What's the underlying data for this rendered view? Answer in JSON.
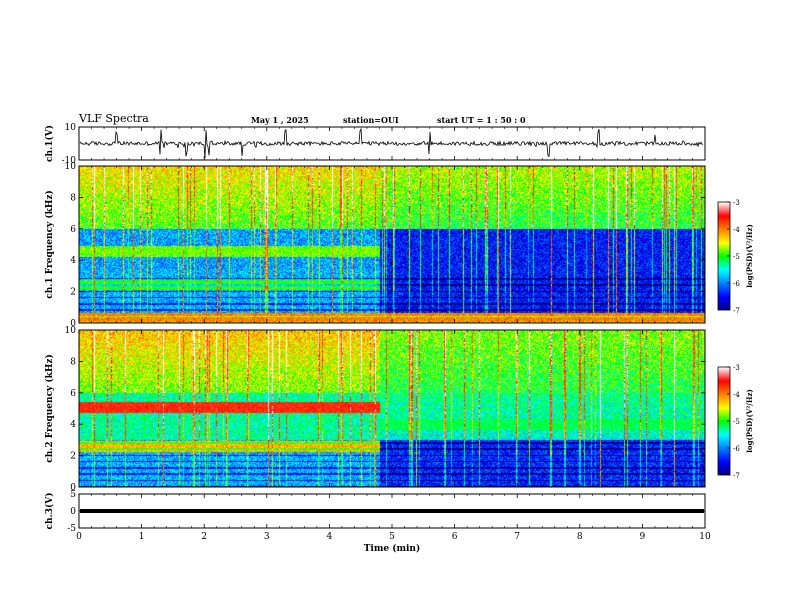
{
  "header": {
    "title": "VLF Spectra",
    "date": "May 1 , 2025",
    "station": "station=OUI",
    "start": "start UT = 1 : 50 : 0"
  },
  "colorscale": {
    "stops": [
      "#000080",
      "#0000ff",
      "#0080ff",
      "#00ffff",
      "#00ff00",
      "#ffff00",
      "#ff8000",
      "#ff0000",
      "#ffffff"
    ],
    "ticks": [
      "-3",
      "-4",
      "-5",
      "-6",
      "-7"
    ],
    "label": "log(PSD)(V²/Hz)"
  },
  "chart_data": [
    {
      "type": "line",
      "id": "ch1-waveform",
      "ylabel": "ch.1(V)",
      "ylim": [
        -10,
        10
      ],
      "yticks": [
        "10",
        "-10"
      ],
      "xlim": [
        0,
        10
      ],
      "baseline": 0,
      "noise_amplitude": 1.2,
      "spike_times_min": [
        0.6,
        1.3,
        1.72,
        2.02,
        2.08,
        2.6,
        3.3,
        4.5,
        5.6,
        7.5,
        8.3,
        9.2
      ]
    },
    {
      "type": "heatmap",
      "id": "ch1-spectrogram",
      "xlabel": "",
      "ylabel": "ch.1 Frequency (kHz)",
      "xlim": [
        0,
        10
      ],
      "ylim": [
        0,
        10
      ],
      "yticks": [
        "0",
        "2",
        "4",
        "6",
        "8",
        "10"
      ],
      "change_time_min": 4.8,
      "bands_before": [
        {
          "f_khz": 4.6,
          "level": 0.55
        },
        {
          "f_khz": 2.5,
          "level": 0.5
        },
        {
          "f_khz": 0.3,
          "level": 0.75
        }
      ],
      "bands_after": [
        {
          "f_khz": 0.3,
          "level": 0.75
        }
      ]
    },
    {
      "type": "heatmap",
      "id": "ch2-spectrogram",
      "ylabel": "ch.2 Frequency (kHz)",
      "xlim": [
        0,
        10
      ],
      "ylim": [
        0,
        10
      ],
      "yticks": [
        "0",
        "2",
        "4",
        "6",
        "8",
        "10"
      ],
      "change_time_min": 4.8,
      "bands_before": [
        {
          "f_khz": 5.1,
          "level": 0.85
        },
        {
          "f_khz": 2.6,
          "level": 0.7
        }
      ],
      "bands_after": [
        {
          "f_khz": 4.0,
          "level": 0.45
        }
      ]
    },
    {
      "type": "line",
      "id": "ch3-waveform",
      "ylabel": "ch.3(V)",
      "ylim": [
        -5,
        5
      ],
      "yticks": [
        "5",
        "0",
        "-5"
      ],
      "xlim": [
        0,
        10
      ],
      "baseline": 0,
      "xlabel": "Time (min)",
      "xticks": [
        "0",
        "1",
        "2",
        "3",
        "4",
        "5",
        "6",
        "7",
        "8",
        "9",
        "10"
      ]
    }
  ]
}
